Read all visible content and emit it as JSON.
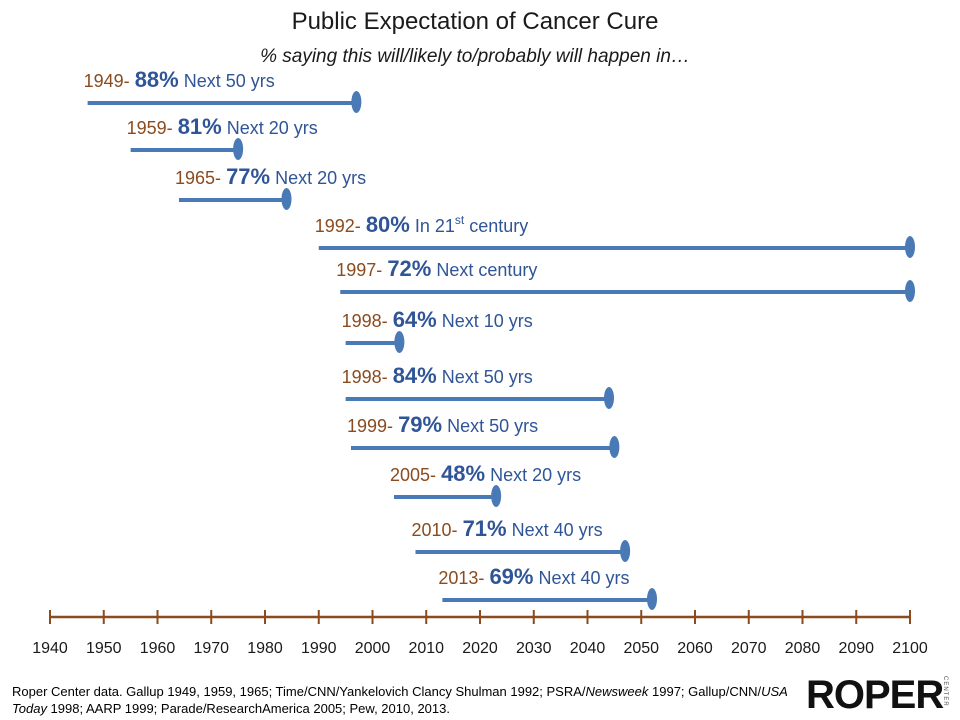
{
  "chart_data": {
    "type": "timeline",
    "title": "Public Expectation of Cancer Cure",
    "subtitle": "% saying this will/likely to/probably will happen in…",
    "xlim": [
      1940,
      2100
    ],
    "x_ticks": [
      1940,
      1950,
      1960,
      1970,
      1980,
      1990,
      2000,
      2010,
      2020,
      2030,
      2040,
      2050,
      2060,
      2070,
      2080,
      2090,
      2100
    ],
    "grid": false,
    "series": [
      {
        "year": 1949,
        "year_label": "1949-",
        "percent_label": "88%",
        "percent": 88,
        "horizon": "Next 50 yrs",
        "start": 1947,
        "end": 1997
      },
      {
        "year": 1959,
        "year_label": "1959-",
        "percent_label": "81%",
        "percent": 81,
        "horizon": "Next 20 yrs",
        "start": 1955,
        "end": 1975
      },
      {
        "year": 1965,
        "year_label": "1965-",
        "percent_label": "77%",
        "percent": 77,
        "horizon": "Next 20 yrs",
        "start": 1964,
        "end": 1984
      },
      {
        "year": 1992,
        "year_label": "1992-",
        "percent_label": "80%",
        "percent": 80,
        "horizon_pre": "In 21",
        "horizon_sup": "st",
        "horizon_post": " century",
        "start": 1990,
        "end": 2100
      },
      {
        "year": 1997,
        "year_label": "1997-",
        "percent_label": "72%",
        "percent": 72,
        "horizon": "Next century",
        "start": 1994,
        "end": 2100
      },
      {
        "year": 1998,
        "year_label": "1998-",
        "percent_label": "64%",
        "percent": 64,
        "horizon": "Next 10 yrs",
        "start": 1995,
        "end": 2005
      },
      {
        "year": 1998,
        "year_label": "1998-",
        "percent_label": "84%",
        "percent": 84,
        "horizon": "Next 50 yrs",
        "start": 1995,
        "end": 2044
      },
      {
        "year": 1999,
        "year_label": "1999-",
        "percent_label": "79%",
        "percent": 79,
        "horizon": "Next 50 yrs",
        "start": 1996,
        "end": 2045
      },
      {
        "year": 2005,
        "year_label": "2005-",
        "percent_label": "48%",
        "percent": 48,
        "horizon": "Next 20 yrs",
        "start": 2004,
        "end": 2023
      },
      {
        "year": 2010,
        "year_label": "2010-",
        "percent_label": "71%",
        "percent": 71,
        "horizon": "Next 40 yrs",
        "start": 2008,
        "end": 2047
      },
      {
        "year": 2013,
        "year_label": "2013-",
        "percent_label": "69%",
        "percent": 69,
        "horizon": "Next 40 yrs",
        "start": 2013,
        "end": 2052
      }
    ]
  },
  "footer": {
    "part1": "Roper Center data. Gallup 1949, 1959, 1965; Time/CNN/Yankelovich Clancy Shulman 1992; PSRA/",
    "italic1": "Newsweek",
    "part2": " 1997; Gallup/CNN/",
    "italic2": "USA Today",
    "part3": " 1998; AARP 1999; Parade/ResearchAmerica 2005; Pew, 2010, 2013."
  },
  "logo": {
    "text": "ROPER",
    "sub": "CENTER"
  },
  "colors": {
    "bar": "#4a7ab5",
    "axis": "#8a4b1e",
    "year_label": "#8a4b1e",
    "percent_label": "#2f5597"
  }
}
